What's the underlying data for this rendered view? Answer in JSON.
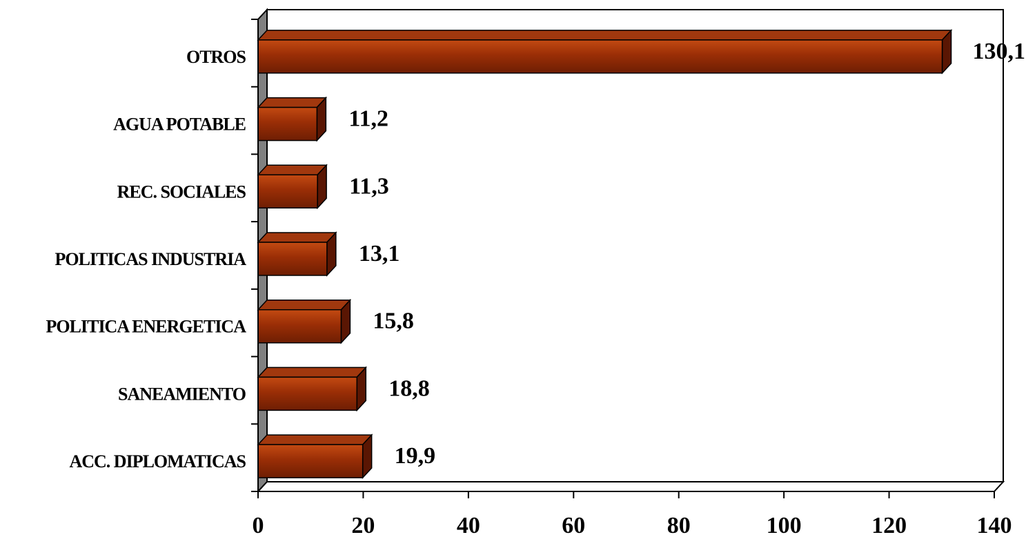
{
  "chart_data": {
    "type": "bar",
    "orientation": "horizontal",
    "three_d": true,
    "categories": [
      "ACC. DIPLOMATICAS",
      "SANEAMIENTO",
      "POLITICA ENERGETICA",
      "POLITICAS INDUSTRIA",
      "REC. SOCIALES",
      "AGUA POTABLE",
      "OTROS"
    ],
    "values": [
      19.9,
      18.8,
      15.8,
      13.1,
      11.3,
      11.2,
      130.1
    ],
    "value_labels": [
      "19,9",
      "18,8",
      "15,8",
      "13,1",
      "11,3",
      "11,2",
      "130,1"
    ],
    "title": "",
    "xlabel": "",
    "ylabel": "",
    "xlim": [
      0,
      140
    ],
    "x_ticks": [
      0,
      20,
      40,
      60,
      80,
      100,
      120,
      140
    ],
    "x_tick_labels": [
      "0",
      "20",
      "40",
      "60",
      "80",
      "100",
      "120",
      "140"
    ],
    "grid": false,
    "legend": "none",
    "colors": {
      "bar_face": "#8f2a05",
      "bar_highlight": "#b8400f",
      "bar_top": "#a1380e",
      "bar_side": "#5a1603",
      "bar_edge": "#000000",
      "wall": "#808080",
      "axis": "#000000"
    }
  }
}
